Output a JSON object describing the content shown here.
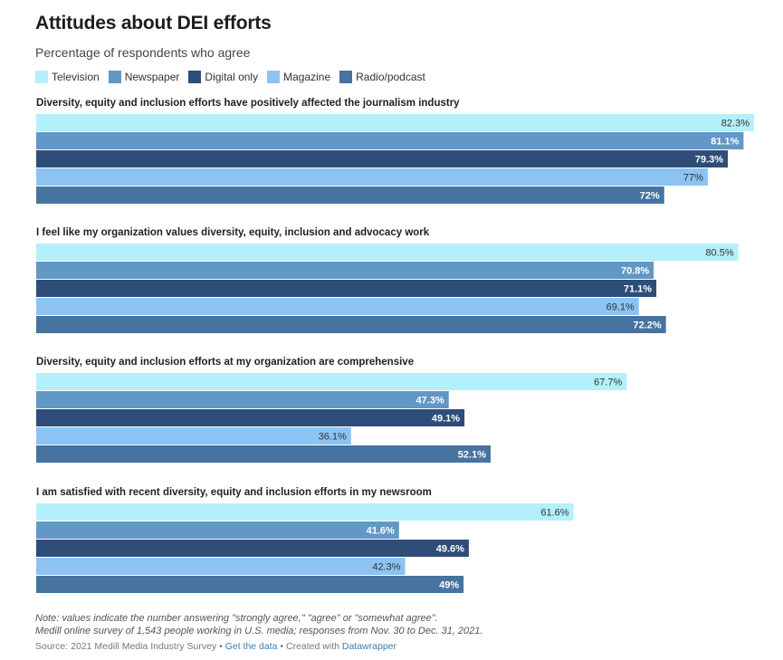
{
  "header": {
    "title": "Attitudes about DEI efforts",
    "subtitle": "Percentage of respondents who agree"
  },
  "legend": [
    {
      "label": "Television",
      "color": "#b3f0fb"
    },
    {
      "label": "Newspaper",
      "color": "#6198c6"
    },
    {
      "label": "Digital only",
      "color": "#2e4d78"
    },
    {
      "label": "Magazine",
      "color": "#8cc3f2"
    },
    {
      "label": "Radio/podcast",
      "color": "#4673a0"
    }
  ],
  "chart_data": {
    "type": "bar",
    "orientation": "horizontal",
    "title": "Attitudes about DEI efforts",
    "subtitle": "Percentage of respondents who agree",
    "xlabel": "",
    "ylabel": "",
    "unit": "%",
    "xlim": [
      0,
      82.3
    ],
    "grid": false,
    "legend_position": "top-left",
    "series_names": [
      "Television",
      "Newspaper",
      "Digital only",
      "Magazine",
      "Radio/podcast"
    ],
    "series_colors": [
      "#b3f0fb",
      "#6198c6",
      "#2e4d78",
      "#8cc3f2",
      "#4673a0"
    ],
    "label_colors": [
      "#333333",
      "#ffffff",
      "#ffffff",
      "#333333",
      "#ffffff"
    ],
    "label_bold": [
      false,
      true,
      true,
      false,
      true
    ],
    "groups": [
      {
        "label": "Diversity, equity and inclusion efforts have positively affected the journalism industry",
        "values": [
          82.3,
          81.1,
          79.3,
          77,
          72
        ],
        "labels": [
          "82.3%",
          "81.1%",
          "79.3%",
          "77%",
          "72%"
        ]
      },
      {
        "label": "I feel like my organization values diversity, equity, inclusion and advocacy work",
        "values": [
          80.5,
          70.8,
          71.1,
          69.1,
          72.2
        ],
        "labels": [
          "80.5%",
          "70.8%",
          "71.1%",
          "69.1%",
          "72.2%"
        ]
      },
      {
        "label": "Diversity, equity and inclusion efforts at my organization are comprehensive",
        "values": [
          67.7,
          47.3,
          49.1,
          36.1,
          52.1
        ],
        "labels": [
          "67.7%",
          "47.3%",
          "49.1%",
          "36.1%",
          "52.1%"
        ]
      },
      {
        "label": "I am satisfied with recent diversity, equity and inclusion efforts in my newsroom",
        "values": [
          61.6,
          41.6,
          49.6,
          42.3,
          49
        ],
        "labels": [
          "61.6%",
          "41.6%",
          "49.6%",
          "42.3%",
          "49%"
        ]
      }
    ]
  },
  "footer": {
    "note_line1": "Note: values indicate the number answering \"strongly agree,\" \"agree\" or \"somewhat agree\".",
    "note_line2": "Medill online survey of 1,543 people working in U.S. media; responses from Nov. 30 to Dec. 31, 2021.",
    "source_prefix": "Source: 2021 Medill Media Industry Survey • ",
    "get_data_link": "Get the data",
    "separator": " • Created with ",
    "datawrapper_link": "Datawrapper"
  }
}
